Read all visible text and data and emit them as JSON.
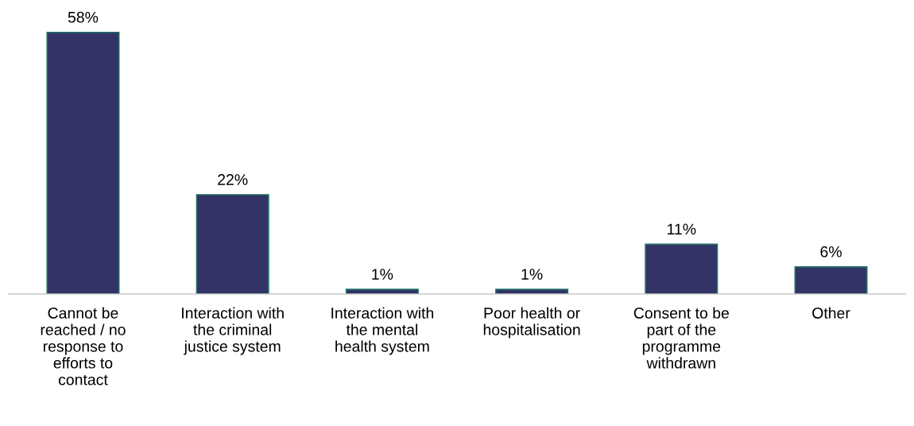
{
  "chart_data": {
    "type": "bar",
    "categories": [
      "Cannot be\nreached / no\nresponse to\nefforts to\ncontact",
      "Interaction with\nthe criminal\njustice system",
      "Interaction with\nthe mental\nhealth system",
      "Poor health or\nhospitalisation",
      "Consent to be\npart of the\nprogramme\nwithdrawn",
      "Other"
    ],
    "values": [
      58,
      22,
      1,
      1,
      11,
      6
    ],
    "value_labels": [
      "58%",
      "22%",
      "1%",
      "1%",
      "11%",
      "6%"
    ],
    "color": "#333366",
    "grid": false,
    "legend": false
  }
}
